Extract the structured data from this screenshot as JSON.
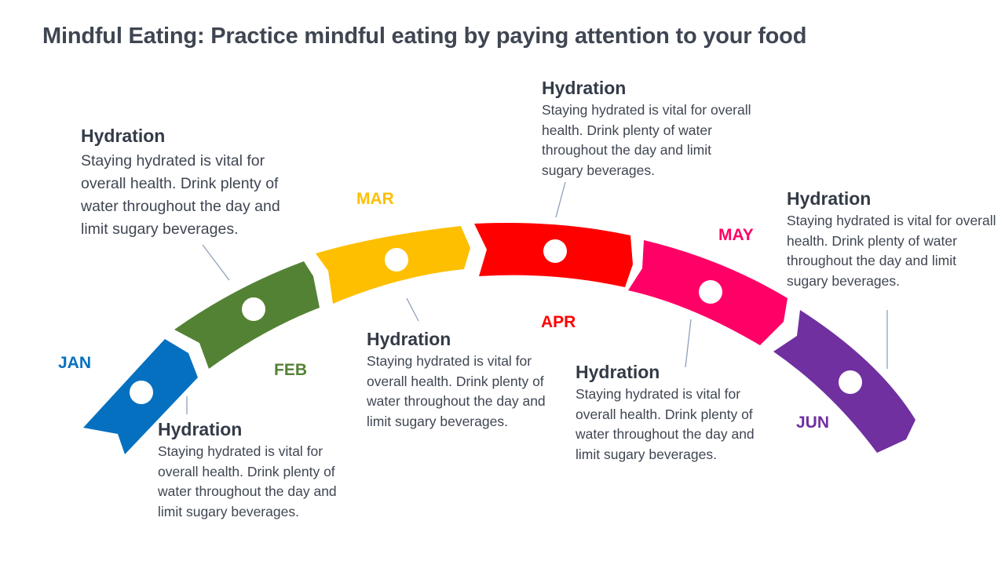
{
  "title": "Mindful Eating: Practice mindful eating by paying attention to your food",
  "months": [
    {
      "label": "JAN",
      "color": "#0670c0"
    },
    {
      "label": "FEB",
      "color": "#548235"
    },
    {
      "label": "MAR",
      "color": "#fdbf00"
    },
    {
      "label": "APR",
      "color": "#fe0000"
    },
    {
      "label": "MAY",
      "color": "#ff0066"
    },
    {
      "label": "JUN",
      "color": "#7030a0"
    }
  ],
  "cards": [
    {
      "heading": "Hydration",
      "text": "Staying hydrated is vital for overall health. Drink plenty of water throughout the day and limit sugary beverages."
    },
    {
      "heading": "Hydration",
      "text": "Staying hydrated is vital for overall health. Drink plenty of water throughout the day and limit sugary beverages."
    },
    {
      "heading": "Hydration",
      "text": "Staying hydrated is vital for overall health. Drink plenty of water throughout the day and limit sugary beverages."
    },
    {
      "heading": "Hydration",
      "text": "Staying hydrated is vital for overall health. Drink plenty of water throughout the day and limit sugary beverages."
    },
    {
      "heading": "Hydration",
      "text": "Staying hydrated is vital for overall health. Drink plenty of water throughout the day and limit sugary beverages."
    },
    {
      "heading": "Hydration",
      "text": "Staying hydrated is vital for overall health. Drink plenty of water throughout the day and limit sugary beverages."
    }
  ]
}
